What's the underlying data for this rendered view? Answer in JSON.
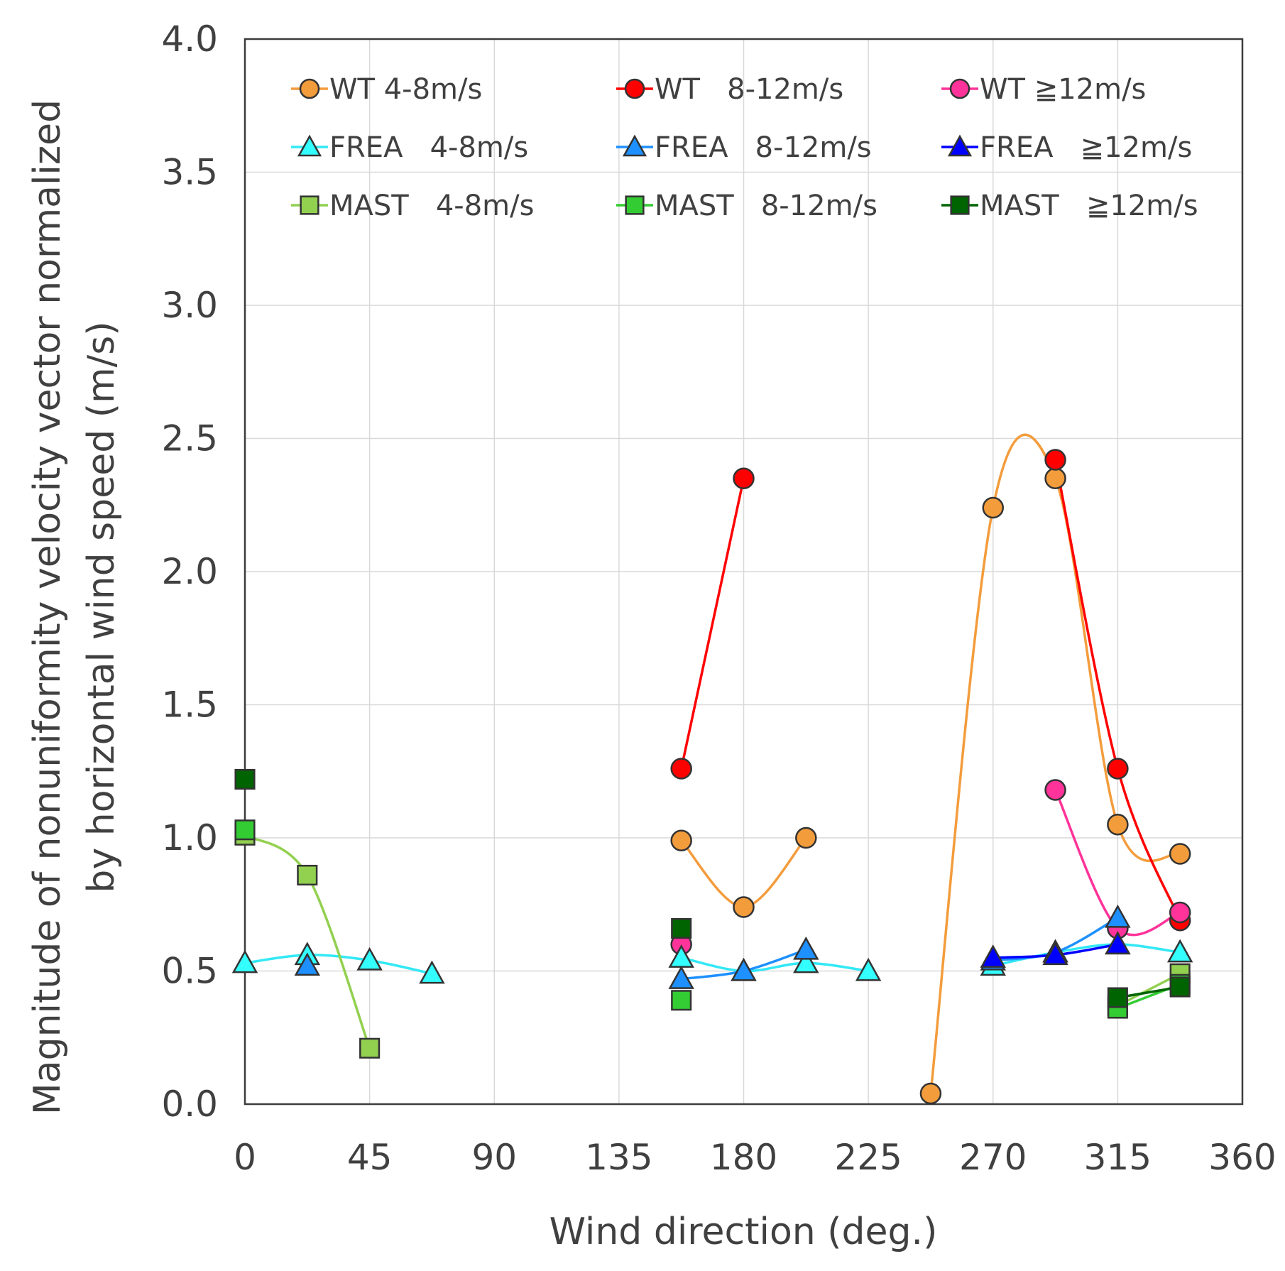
{
  "chart_data": {
    "type": "scatter",
    "title": "",
    "xlabel": "Wind direction (deg.)",
    "ylabel_line1": "Magnitude of nonuniformity velocity vector normalized",
    "ylabel_line2": "by horizontal wind speed (m/s)",
    "xlim": [
      0,
      360
    ],
    "ylim": [
      0,
      4
    ],
    "xticks": [
      "0",
      "45",
      "90",
      "135",
      "180",
      "225",
      "270",
      "315",
      "360"
    ],
    "yticks": [
      "0.0",
      "0.5",
      "1.0",
      "1.5",
      "2.0",
      "2.5",
      "3.0",
      "3.5",
      "4.0"
    ],
    "grid": true,
    "legend_position": "top",
    "series": [
      {
        "name": "WT 4-8m/s",
        "marker": "circle",
        "color": "#F39C3C",
        "line_color": "#F39C3C",
        "segments": [
          [
            [
              157.5,
              0.99
            ],
            [
              180,
              0.74
            ],
            [
              202.5,
              1.0
            ]
          ],
          [
            [
              247.5,
              0.04
            ],
            [
              270,
              2.24
            ],
            [
              292.5,
              2.35
            ],
            [
              315,
              1.05
            ],
            [
              337.5,
              0.94
            ]
          ]
        ]
      },
      {
        "name": "WT   8-12m/s",
        "marker": "circle",
        "color": "#FF0000",
        "line_color": "#FF0000",
        "segments": [
          [
            [
              157.5,
              1.26
            ],
            [
              180,
              2.35
            ]
          ],
          [
            [
              292.5,
              2.42
            ],
            [
              315,
              1.26
            ],
            [
              337.5,
              0.69
            ]
          ]
        ]
      },
      {
        "name": "WT ≧12m/s",
        "marker": "circle",
        "color": "#FF3399",
        "line_color": "#FF3399",
        "segments": [
          [
            [
              157.5,
              0.6
            ]
          ],
          [
            [
              292.5,
              1.18
            ],
            [
              315,
              0.66
            ],
            [
              337.5,
              0.72
            ]
          ]
        ]
      },
      {
        "name": "FREA   4-8m/s",
        "marker": "triangle",
        "color": "#33FFFF",
        "line_color": "#33E8F5",
        "segments": [
          [
            [
              0,
              0.53
            ],
            [
              22.5,
              0.56
            ],
            [
              45,
              0.54
            ],
            [
              67.5,
              0.49
            ]
          ],
          [
            [
              157.5,
              0.55
            ],
            [
              180,
              0.5
            ],
            [
              202.5,
              0.53
            ],
            [
              225,
              0.5
            ]
          ],
          [
            [
              270,
              0.52
            ],
            [
              292.5,
              0.57
            ],
            [
              315,
              0.6
            ],
            [
              337.5,
              0.57
            ]
          ]
        ]
      },
      {
        "name": "FREA   8-12m/s",
        "marker": "triangle",
        "color": "#1E90FF",
        "line_color": "#1E90FF",
        "segments": [
          [
            [
              22.5,
              0.52
            ]
          ],
          [
            [
              157.5,
              0.47
            ],
            [
              180,
              0.5
            ],
            [
              202.5,
              0.58
            ]
          ],
          [
            [
              270,
              0.54
            ],
            [
              292.5,
              0.57
            ],
            [
              315,
              0.7
            ]
          ]
        ]
      },
      {
        "name": "FREA   ≧12m/s",
        "marker": "triangle",
        "color": "#0000FF",
        "line_color": "#0000FF",
        "segments": [
          [
            [
              270,
              0.55
            ],
            [
              292.5,
              0.56
            ],
            [
              315,
              0.6
            ]
          ]
        ]
      },
      {
        "name": "MAST   4-8m/s",
        "marker": "square",
        "color": "#92D050",
        "line_color": "#92D050",
        "segments": [
          [
            [
              0,
              1.01
            ],
            [
              22.5,
              0.86
            ],
            [
              45,
              0.21
            ]
          ],
          [
            [
              315,
              0.37
            ],
            [
              337.5,
              0.49
            ]
          ]
        ]
      },
      {
        "name": "MAST   8-12m/s",
        "marker": "square",
        "color": "#33CC33",
        "line_color": "#33CC33",
        "segments": [
          [
            [
              0,
              1.03
            ]
          ],
          [
            [
              157.5,
              0.39
            ]
          ],
          [
            [
              315,
              0.36
            ],
            [
              337.5,
              0.45
            ]
          ]
        ]
      },
      {
        "name": "MAST   ≧12m/s",
        "marker": "square",
        "color": "#006400",
        "line_color": "#006400",
        "segments": [
          [
            [
              0,
              1.22
            ]
          ],
          [
            [
              157.5,
              0.66
            ]
          ],
          [
            [
              315,
              0.4
            ],
            [
              337.5,
              0.44
            ]
          ]
        ]
      }
    ]
  }
}
